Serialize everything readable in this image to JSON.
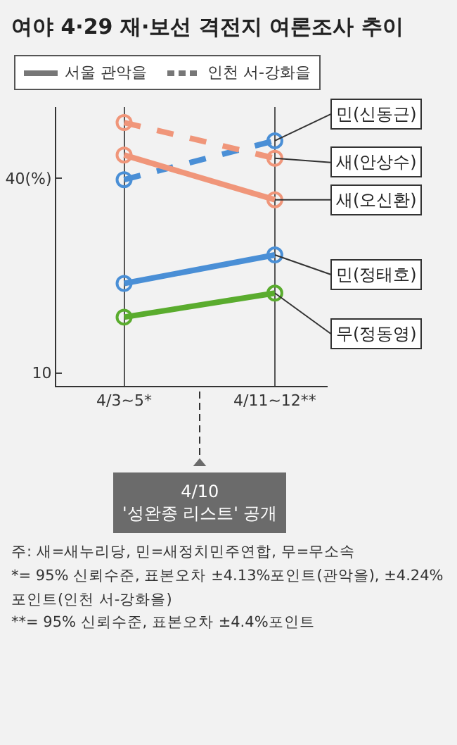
{
  "chart_data": {
    "type": "line",
    "title": "여야 4·29 재·보선 격전지 여론조사 추이",
    "categories": [
      "4/3~5*",
      "4/11~12**"
    ],
    "ylim": [
      8,
      51
    ],
    "yticks": [
      {
        "value": 40,
        "label": "40(%)"
      },
      10
    ],
    "grid": "x",
    "marker": "circle",
    "legend": false,
    "series": [
      {
        "name": "민(신동근)",
        "color": "#4a8fd6",
        "line_style": "dashed",
        "values": [
          39.8,
          45.8
        ]
      },
      {
        "name": "새(안상수)",
        "color": "#f0967a",
        "line_style": "dashed",
        "values": [
          48.6,
          43.1
        ]
      },
      {
        "name": "새(오신환)",
        "color": "#f0967a",
        "line_style": "solid",
        "values": [
          43.6,
          36.7
        ]
      },
      {
        "name": "민(정태호)",
        "color": "#4a8fd6",
        "line_style": "solid",
        "values": [
          23.8,
          28.2
        ]
      },
      {
        "name": "무(정동영)",
        "color": "#5aac2e",
        "line_style": "solid",
        "values": [
          18.6,
          22.3
        ]
      }
    ],
    "annotations": [
      "서울 관악을",
      "인천 서-강화을",
      "4/10\n'성완종 리스트' 공개",
      "주: 새=새누리당, 민=새정치민주연합, 무=무소속",
      "*= 95% 신뢰수준, 표본오차 ±4.13%포인트(관악을), ±4.24%포인트(인천 서-강화을)",
      "**= 95% 신뢰수준, 표본오차 ±4.4%포인트"
    ]
  }
}
